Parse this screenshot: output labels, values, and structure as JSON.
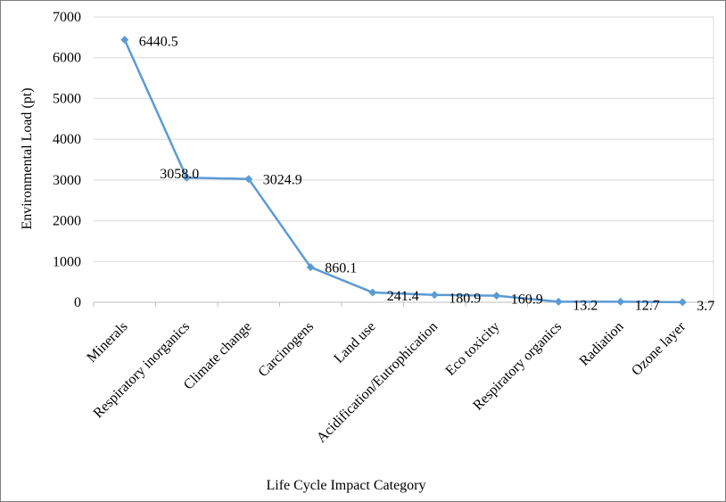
{
  "chart_data": {
    "type": "line",
    "title": "",
    "xlabel": "Life Cycle Impact Category",
    "ylabel": "Environmental Load (pt)",
    "ylim": [
      0,
      7000
    ],
    "yticks": [
      0,
      1000,
      2000,
      3000,
      4000,
      5000,
      6000,
      7000
    ],
    "grid": true,
    "legend": "none",
    "line_color": "#5b9bd5",
    "categories": [
      "Minerals",
      "Respiratory inorganics",
      "Climate change",
      "Carcinogens",
      "Land use",
      "Acidification/Eutrophication",
      "Eco toxicity",
      "Respiratory organics",
      "Radiation",
      "Ozone layer"
    ],
    "values": [
      6440.5,
      3058.0,
      3024.9,
      860.1,
      241.4,
      180.9,
      160.9,
      13.2,
      12.7,
      3.7
    ],
    "data_labels": [
      "6440.5",
      "3058.0",
      "3024.9",
      "860.1",
      "241.4",
      "180.9",
      "160.9",
      "13.2",
      "12.7",
      "3.7"
    ]
  }
}
